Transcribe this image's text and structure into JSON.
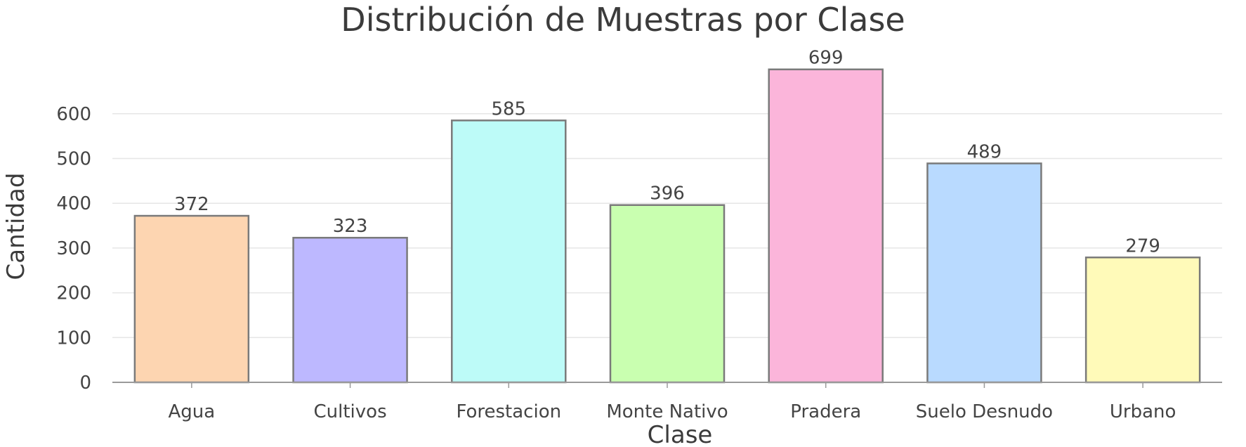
{
  "chart_data": {
    "type": "bar",
    "title": "Distribución de Muestras por Clase",
    "xlabel": "Clase",
    "ylabel": "Cantidad",
    "categories": [
      "Agua",
      "Cultivos",
      "Forestacion",
      "Monte Nativo",
      "Pradera",
      "Suelo Desnudo",
      "Urbano"
    ],
    "values": [
      372,
      323,
      585,
      396,
      699,
      489,
      279
    ],
    "value_labels": [
      "372",
      "323",
      "585",
      "396",
      "699",
      "489",
      "279"
    ],
    "colors": [
      "#fdd5b1",
      "#bdb8ff",
      "#bdfbf8",
      "#c9ffb0",
      "#fbb5da",
      "#b9daff",
      "#fffab9"
    ],
    "ylim": [
      0,
      700
    ],
    "yticks": [
      0,
      100,
      200,
      300,
      400,
      500,
      600
    ],
    "ytick_labels": [
      "0",
      "100",
      "200",
      "300",
      "400",
      "500",
      "600"
    ],
    "grid": true,
    "legend": "none"
  }
}
